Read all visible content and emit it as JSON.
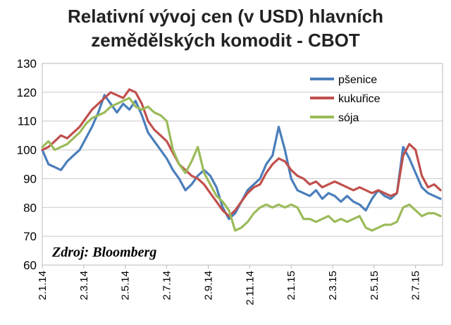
{
  "chart_data": {
    "type": "line",
    "title_lines": [
      "Relativní vývoj cen (v USD) hlavních",
      "zemědělských komodit - CBOT"
    ],
    "source_note": "Zdroj: Bloomberg",
    "ylim": [
      60,
      130
    ],
    "yticks": [
      "60",
      "70",
      "80",
      "90",
      "100",
      "110",
      "120",
      "130"
    ],
    "xticks": [
      "2.1.14",
      "2.3.14",
      "2.5.14",
      "2.7.14",
      "2.9.14",
      "2.11.14",
      "2.1.15",
      "2.3.15",
      "2.5.15",
      "2.7.15"
    ],
    "xtick_positions": [
      0,
      2,
      4,
      6,
      8,
      10,
      12,
      14,
      16,
      18
    ],
    "x_end": 19.3,
    "grid": "horizontal",
    "legend_position": "top-right",
    "series": [
      {
        "name": "pšenice",
        "color": "#4a7ebb",
        "x": [
          0,
          0.3,
          0.6,
          0.9,
          1.2,
          1.5,
          1.8,
          2.1,
          2.4,
          2.7,
          3.0,
          3.3,
          3.6,
          3.9,
          4.2,
          4.5,
          4.8,
          5.1,
          5.4,
          5.7,
          6.0,
          6.3,
          6.6,
          6.9,
          7.2,
          7.5,
          7.8,
          8.1,
          8.4,
          8.7,
          9.0,
          9.3,
          9.6,
          9.9,
          10.2,
          10.5,
          10.8,
          11.1,
          11.4,
          11.7,
          12.0,
          12.3,
          12.6,
          12.9,
          13.2,
          13.5,
          13.8,
          14.1,
          14.4,
          14.7,
          15.0,
          15.3,
          15.6,
          15.9,
          16.2,
          16.5,
          16.8,
          17.1,
          17.4,
          17.7,
          18.0,
          18.3,
          18.6,
          18.9,
          19.2
        ],
        "values": [
          100,
          95,
          94,
          93,
          96,
          98,
          100,
          104,
          108,
          113,
          119,
          116,
          113,
          116,
          114,
          117,
          112,
          106,
          103,
          100,
          97,
          93,
          90,
          86,
          88,
          91,
          93,
          91,
          87,
          80,
          76,
          78,
          82,
          86,
          88,
          90,
          95,
          98,
          108,
          100,
          90,
          86,
          85,
          84,
          86,
          83,
          85,
          84,
          82,
          84,
          82,
          81,
          79,
          83,
          86,
          84,
          83,
          85,
          101,
          97,
          92,
          87,
          85,
          84,
          83
        ]
      },
      {
        "name": "kukuřice",
        "color": "#c0504d",
        "x": [
          0,
          0.3,
          0.6,
          0.9,
          1.2,
          1.5,
          1.8,
          2.1,
          2.4,
          2.7,
          3.0,
          3.3,
          3.6,
          3.9,
          4.2,
          4.5,
          4.8,
          5.1,
          5.4,
          5.7,
          6.0,
          6.3,
          6.6,
          6.9,
          7.2,
          7.5,
          7.8,
          8.1,
          8.4,
          8.7,
          9.0,
          9.3,
          9.6,
          9.9,
          10.2,
          10.5,
          10.8,
          11.1,
          11.4,
          11.7,
          12.0,
          12.3,
          12.6,
          12.9,
          13.2,
          13.5,
          13.8,
          14.1,
          14.4,
          14.7,
          15.0,
          15.3,
          15.6,
          15.9,
          16.2,
          16.5,
          16.8,
          17.1,
          17.4,
          17.7,
          18.0,
          18.3,
          18.6,
          18.9,
          19.2
        ],
        "values": [
          100,
          101,
          103,
          105,
          104,
          106,
          108,
          111,
          114,
          116,
          118,
          120,
          119,
          118,
          121,
          120,
          116,
          110,
          107,
          105,
          103,
          99,
          95,
          93,
          91,
          90,
          88,
          85,
          82,
          79,
          77,
          79,
          82,
          85,
          87,
          88,
          92,
          95,
          97,
          96,
          93,
          91,
          90,
          88,
          89,
          87,
          88,
          89,
          88,
          87,
          86,
          87,
          86,
          85,
          86,
          85,
          84,
          85,
          98,
          102,
          100,
          91,
          87,
          88,
          86
        ]
      },
      {
        "name": "sója",
        "color": "#9bbb59",
        "x": [
          0,
          0.3,
          0.6,
          0.9,
          1.2,
          1.5,
          1.8,
          2.1,
          2.4,
          2.7,
          3.0,
          3.3,
          3.6,
          3.9,
          4.2,
          4.5,
          4.8,
          5.1,
          5.4,
          5.7,
          6.0,
          6.3,
          6.6,
          6.9,
          7.2,
          7.5,
          7.8,
          8.1,
          8.4,
          8.7,
          9.0,
          9.3,
          9.6,
          9.9,
          10.2,
          10.5,
          10.8,
          11.1,
          11.4,
          11.7,
          12.0,
          12.3,
          12.6,
          12.9,
          13.2,
          13.5,
          13.8,
          14.1,
          14.4,
          14.7,
          15.0,
          15.3,
          15.6,
          15.9,
          16.2,
          16.5,
          16.8,
          17.1,
          17.4,
          17.7,
          18.0,
          18.3,
          18.6,
          18.9,
          19.2
        ],
        "values": [
          101,
          103,
          100,
          101,
          102,
          104,
          106,
          109,
          111,
          112,
          113,
          115,
          116,
          117,
          118,
          115,
          114,
          115,
          113,
          112,
          110,
          100,
          95,
          92,
          96,
          101,
          92,
          88,
          84,
          82,
          79,
          72,
          73,
          75,
          78,
          80,
          81,
          80,
          81,
          80,
          81,
          80,
          76,
          76,
          75,
          76,
          77,
          75,
          76,
          75,
          76,
          77,
          73,
          72,
          73,
          74,
          74,
          75,
          80,
          81,
          79,
          77,
          78,
          78,
          77
        ]
      }
    ]
  }
}
